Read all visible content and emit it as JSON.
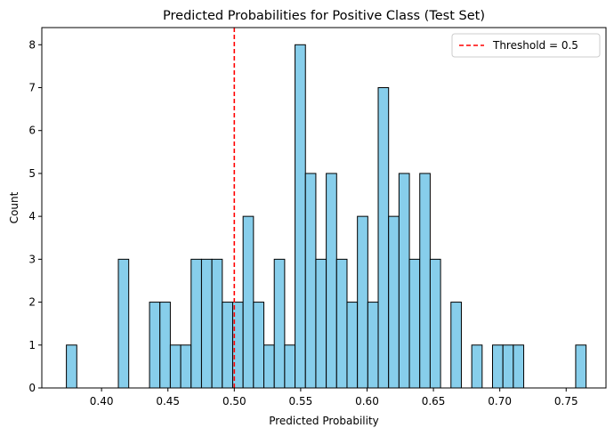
{
  "chart_data": {
    "type": "histogram",
    "title": "Predicted Probabilities for Positive Class (Test Set)",
    "xlabel": "Predicted Probability",
    "ylabel": "Count",
    "xlim": [
      0.355,
      0.78
    ],
    "ylim": [
      0,
      8.4
    ],
    "x_ticks": [
      0.4,
      0.45,
      0.5,
      0.55,
      0.6,
      0.65,
      0.7,
      0.75
    ],
    "x_tick_labels": [
      "0.40",
      "0.45",
      "0.50",
      "0.55",
      "0.60",
      "0.65",
      "0.70",
      "0.75"
    ],
    "y_ticks": [
      0,
      1,
      2,
      3,
      4,
      5,
      6,
      7,
      8
    ],
    "y_tick_labels": [
      "0",
      "1",
      "2",
      "3",
      "4",
      "5",
      "6",
      "7",
      "8"
    ],
    "bin_start": 0.3735,
    "bin_width": 0.00783,
    "counts": [
      1,
      0,
      0,
      0,
      0,
      3,
      0,
      0,
      2,
      2,
      1,
      1,
      3,
      3,
      3,
      2,
      2,
      4,
      2,
      1,
      3,
      1,
      8,
      5,
      3,
      5,
      3,
      2,
      4,
      2,
      7,
      4,
      5,
      3,
      5,
      3,
      0,
      2,
      0,
      1,
      0,
      1,
      1,
      1,
      0,
      0,
      0,
      0,
      0,
      1
    ],
    "bar_color": "#87ceeb",
    "edge_color": "#000000",
    "threshold": {
      "value": 0.5,
      "label": "Threshold = 0.5",
      "color": "#ff0000",
      "style": "dashed"
    },
    "legend_position": "top-right",
    "grid": false
  }
}
